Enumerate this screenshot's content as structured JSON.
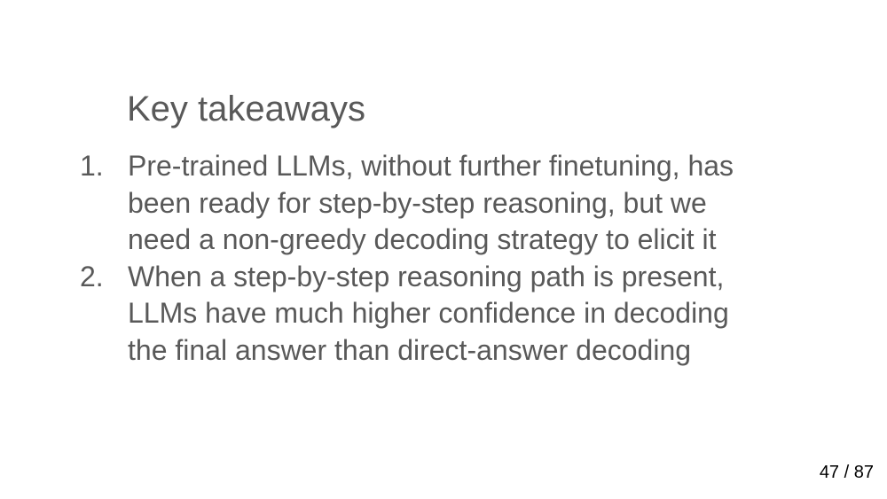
{
  "slide": {
    "title": "Key takeaways",
    "takeaways": [
      {
        "number": "1.",
        "lines": [
          "Pre-trained LLMs, without further finetuning, has",
          "been ready for step-by-step reasoning, but we",
          "need a non-greedy decoding strategy to elicit it"
        ]
      },
      {
        "number": "2.",
        "lines": [
          "When a step-by-step reasoning path is present,",
          "LLMs have much higher confidence in decoding",
          "the final answer than direct-answer decoding"
        ]
      }
    ]
  },
  "pager": {
    "current": "47",
    "separator": "/",
    "total": "87"
  }
}
